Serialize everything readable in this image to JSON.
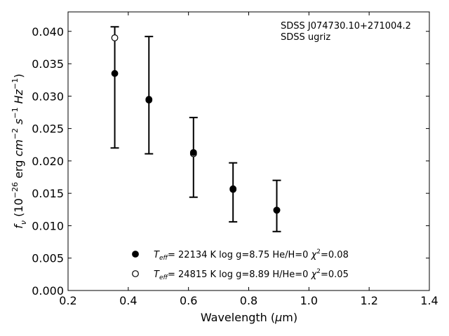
{
  "chart_data": {
    "type": "scatter",
    "annotation_lines": [
      "SDSS J074730.10+271004.2",
      "SDSS ugriz"
    ],
    "xlabel": {
      "prefix": "Wavelength (",
      "greek": "μ",
      "suffix": "m)"
    },
    "ylabel": "f_ν (10^-26 erg cm^-2 s^-1 Hz^-1)",
    "xlim": [
      0.2,
      1.4
    ],
    "ylim": [
      0.0,
      0.043
    ],
    "xticks": [
      0.2,
      0.4,
      0.6,
      0.8,
      1.0,
      1.2,
      1.4
    ],
    "xtick_labels": [
      "0.2",
      "0.4",
      "0.6",
      "0.8",
      "1.0",
      "1.2",
      "1.4"
    ],
    "yticks": [
      0.0,
      0.005,
      0.01,
      0.015,
      0.02,
      0.025,
      0.03,
      0.035,
      0.04
    ],
    "ytick_labels": [
      "0.000",
      "0.005",
      "0.010",
      "0.015",
      "0.020",
      "0.025",
      "0.030",
      "0.035",
      "0.040"
    ],
    "grid": false,
    "legend_position": "lower-center",
    "observed": {
      "x": [
        0.3551,
        0.4686,
        0.6166,
        0.748,
        0.8932
      ],
      "y": [
        0.0335,
        0.0293,
        0.0213,
        0.0156,
        0.0123
      ],
      "err_low": [
        0.022,
        0.0211,
        0.0144,
        0.0106,
        0.0091
      ],
      "err_high": [
        0.0407,
        0.0392,
        0.0267,
        0.0197,
        0.017
      ]
    },
    "series": [
      {
        "marker": "filled",
        "x": [
          0.3551,
          0.4686,
          0.6166,
          0.748,
          0.8932
        ],
        "y": [
          0.0335,
          0.0294,
          0.0213,
          0.0156,
          0.0124
        ],
        "legend": {
          "teff": "22134",
          "logg": "8.75",
          "comp": "He/H=0",
          "chi2": "0.08"
        }
      },
      {
        "marker": "open",
        "x": [
          0.3551,
          0.4686,
          0.6166,
          0.748,
          0.8932
        ],
        "y": [
          0.039,
          0.0295,
          0.0211,
          0.0157,
          0.0124
        ],
        "legend": {
          "teff": "24815",
          "logg": "8.89",
          "comp": "H/He=0",
          "chi2": "0.05"
        }
      }
    ]
  }
}
